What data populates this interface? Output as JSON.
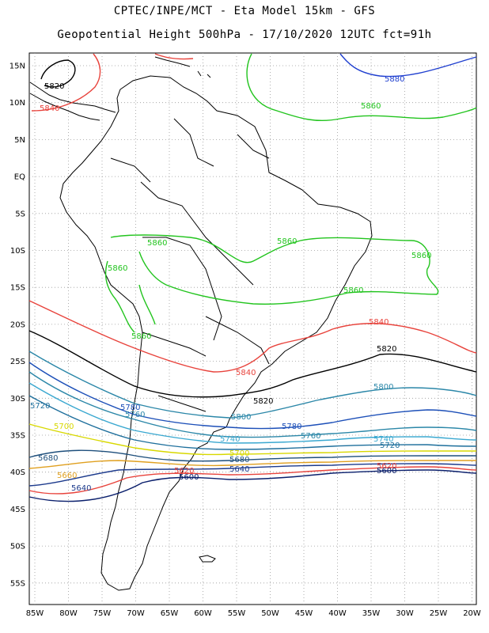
{
  "title_line1": "CPTEC/INPE/MCT  -   Eta Model 15km  -  GFS",
  "title_line2": "Geopotential Height 500hPa  -  17/10/2020 12UTC fct=91h",
  "map": {
    "lat_ticks": [
      "15N",
      "10N",
      "5N",
      "EQ",
      "5S",
      "10S",
      "15S",
      "20S",
      "25S",
      "30S",
      "35S",
      "40S",
      "45S",
      "50S",
      "55S"
    ],
    "lon_ticks": [
      "85W",
      "80W",
      "75W",
      "70W",
      "65W",
      "60W",
      "55W",
      "50W",
      "45W",
      "40W",
      "35W",
      "30W",
      "25W",
      "20W"
    ],
    "contour_labels": [
      {
        "text": "5880",
        "color": "#1f3fcf"
      },
      {
        "text": "5860",
        "color": "#22c41e"
      },
      {
        "text": "5860",
        "color": "#22c41e"
      },
      {
        "text": "5860",
        "color": "#22c41e"
      },
      {
        "text": "5860",
        "color": "#22c41e"
      },
      {
        "text": "5860",
        "color": "#22c41e"
      },
      {
        "text": "5860",
        "color": "#22c41e"
      },
      {
        "text": "5860",
        "color": "#22c41e"
      },
      {
        "text": "5840",
        "color": "#e8433c"
      },
      {
        "text": "5840",
        "color": "#e8433c"
      },
      {
        "text": "5840",
        "color": "#e8433c"
      },
      {
        "text": "5820",
        "color": "#000000"
      },
      {
        "text": "5820",
        "color": "#000000"
      },
      {
        "text": "5820",
        "color": "#000000"
      },
      {
        "text": "5800",
        "color": "#2b87a8"
      },
      {
        "text": "5800",
        "color": "#2b87a8"
      },
      {
        "text": "5780",
        "color": "#1c4fb8"
      },
      {
        "text": "5780",
        "color": "#1c4fb8"
      },
      {
        "text": "5760",
        "color": "#2b87a8"
      },
      {
        "text": "5760",
        "color": "#2b87a8"
      },
      {
        "text": "5740",
        "color": "#3aa8d0"
      },
      {
        "text": "5740",
        "color": "#3aa8d0"
      },
      {
        "text": "5720",
        "color": "#1e6f9c"
      },
      {
        "text": "5720",
        "color": "#1e6f9c"
      },
      {
        "text": "5700",
        "color": "#d8d800"
      },
      {
        "text": "5700",
        "color": "#d8d800"
      },
      {
        "text": "5680",
        "color": "#1e4f7c"
      },
      {
        "text": "5680",
        "color": "#1e4f7c"
      },
      {
        "text": "5660",
        "color": "#e0a020"
      },
      {
        "text": "5640",
        "color": "#1c3a8c"
      },
      {
        "text": "5640",
        "color": "#1c3a8c"
      },
      {
        "text": "5620",
        "color": "#e8433c"
      },
      {
        "text": "5620",
        "color": "#e8433c"
      },
      {
        "text": "5600",
        "color": "#0a1f6c"
      },
      {
        "text": "5600",
        "color": "#0a1f6c"
      }
    ]
  }
}
